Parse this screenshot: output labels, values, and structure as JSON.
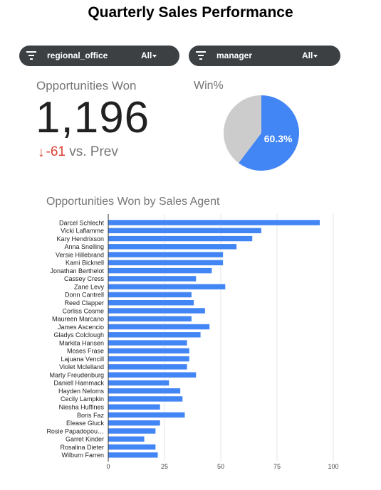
{
  "title": "Quarterly Sales Performance",
  "filters": [
    {
      "name": "regional_office",
      "value": "All"
    },
    {
      "name": "manager",
      "value": "All"
    }
  ],
  "kpi": {
    "label": "Opportunities Won",
    "value": "1,196",
    "delta": "-61",
    "delta_suffix": "vs. Prev"
  },
  "colors": {
    "accent": "#4285f4",
    "pie_rest": "#cccccc",
    "negative": "#db4437",
    "filter_bg": "#3c4043"
  },
  "chart_data": [
    {
      "type": "pie",
      "title": "Win%",
      "slices": [
        {
          "label": "60.3%",
          "value": 60.3,
          "color": "#4285f4"
        },
        {
          "label": "",
          "value": 39.7,
          "color": "#cccccc"
        }
      ]
    },
    {
      "type": "bar",
      "orientation": "horizontal",
      "title": "Opportunities Won by Sales Agent",
      "categories": [
        "Darcel Schlecht",
        "Vicki Laflamme",
        "Kary Hendrixson",
        "Anna Snelling",
        "Versie Hillebrand",
        "Kami Bicknell",
        "Jonathan Berthelot",
        "Cassey Cress",
        "Zane Levy",
        "Donn Cantrell",
        "Reed Clapper",
        "Corliss Cosme",
        "Maureen Marcano",
        "James Ascencio",
        "Gladys Colclough",
        "Markita Hansen",
        "Moses Frase",
        "Lajuana Vencill",
        "Violet Mclelland",
        "Marty Freudenburg",
        "Daniell Hammack",
        "Hayden Neloms",
        "Cecily Lampkin",
        "Niesha Huffines",
        "Boris Faz",
        "Elease Gluck",
        "Rosie Papadopou…",
        "Garret Kinder",
        "Rosalina Dieter",
        "Wilburn Farren"
      ],
      "values": [
        94,
        68,
        64,
        57,
        51,
        51,
        46,
        39,
        52,
        37,
        38,
        43,
        37,
        45,
        41,
        35,
        36,
        36,
        35,
        39,
        27,
        32,
        33,
        23,
        34,
        23,
        21,
        16,
        21,
        22
      ],
      "xticks": [
        0,
        25,
        50,
        75,
        100
      ],
      "xlim": [
        0,
        100
      ],
      "grid": true,
      "color": "#4285f4"
    }
  ]
}
